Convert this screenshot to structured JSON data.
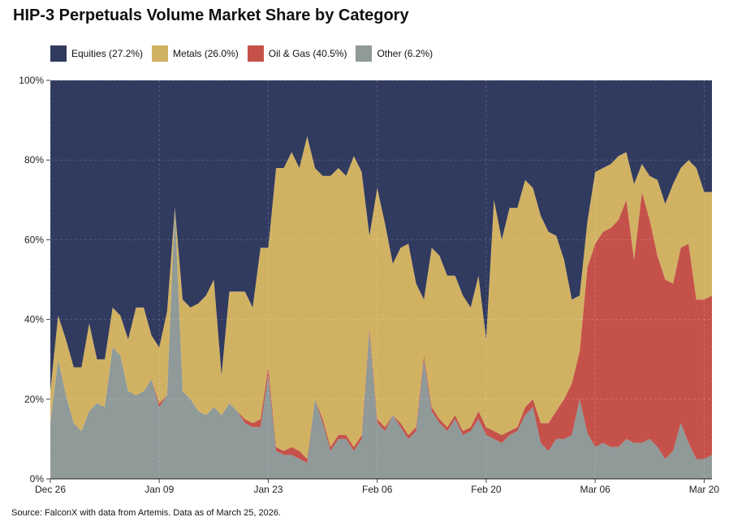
{
  "chart_data": {
    "type": "area",
    "stacked": true,
    "normalized": true,
    "title": "HIP-3 Perpetuals Volume Market Share by Category",
    "xlabel": "",
    "ylabel": "",
    "ylim": [
      0,
      100
    ],
    "y_ticks": [
      "0%",
      "20%",
      "40%",
      "60%",
      "80%",
      "100%"
    ],
    "x_ticks": [
      {
        "label": "Dec 26",
        "index": 0
      },
      {
        "label": "Jan 09",
        "index": 14
      },
      {
        "label": "Jan 23",
        "index": 28
      },
      {
        "label": "Feb 06",
        "index": 42
      },
      {
        "label": "Feb 20",
        "index": 56
      },
      {
        "label": "Mar 06",
        "index": 70
      },
      {
        "label": "Mar 20",
        "index": 84
      }
    ],
    "legend_position": "top-left",
    "grid": true,
    "x_days": 90,
    "series": [
      {
        "name": "Other",
        "legend": "Other (6.2%)",
        "color": "#8f9a99",
        "values": [
          14,
          30,
          21,
          14,
          12,
          17,
          19,
          18,
          33,
          31,
          22,
          21,
          22,
          25,
          18,
          21,
          68,
          22,
          20,
          17,
          16,
          18,
          16,
          19,
          17,
          14,
          13,
          13,
          26,
          7,
          6,
          6,
          5,
          4,
          20,
          14,
          7,
          10,
          10,
          7,
          10,
          37,
          14,
          12,
          16,
          13,
          10,
          12,
          30,
          17,
          14,
          12,
          15,
          11,
          12,
          15,
          11,
          10,
          9,
          11,
          12,
          16,
          18,
          9,
          7,
          10,
          10,
          11,
          20,
          13,
          8,
          9,
          8,
          8,
          10,
          9,
          9,
          10,
          8,
          5,
          7,
          14,
          9,
          5,
          5,
          6
        ]
      },
      {
        "name": "Oil & Gas",
        "legend": "Oil & Gas (40.5%)",
        "color": "#c5524a",
        "values": [
          0,
          0,
          0,
          0,
          0,
          0,
          0,
          0,
          0,
          0,
          0,
          0,
          0,
          0,
          1,
          0,
          0,
          0,
          0,
          0,
          0,
          0,
          0,
          0,
          0,
          1,
          1,
          2,
          2,
          1,
          1,
          2,
          2,
          1,
          0,
          1,
          1,
          1,
          1,
          1,
          1,
          1,
          1,
          1,
          0,
          1,
          1,
          1,
          1,
          1,
          1,
          1,
          1,
          1,
          1,
          2,
          2,
          2,
          2,
          1,
          1,
          2,
          2,
          5,
          7,
          7,
          10,
          13,
          12,
          47,
          51,
          53,
          55,
          57,
          60,
          46,
          63,
          55,
          48,
          45,
          42,
          44,
          50,
          40,
          40,
          40
        ]
      },
      {
        "name": "Metals",
        "legend": "Metals (26.0%)",
        "color": "#d1b263",
        "values": [
          8,
          11,
          14,
          14,
          16,
          22,
          11,
          12,
          10,
          10,
          13,
          22,
          21,
          11,
          14,
          21,
          0,
          23,
          23,
          27,
          30,
          32,
          10,
          28,
          30,
          32,
          29,
          43,
          30,
          70,
          71,
          74,
          71,
          81,
          58,
          61,
          68,
          67,
          65,
          73,
          66,
          23,
          58,
          51,
          38,
          44,
          48,
          36,
          14,
          40,
          41,
          38,
          35,
          34,
          30,
          34,
          22,
          58,
          49,
          56,
          55,
          57,
          53,
          52,
          48,
          44,
          35,
          21,
          14,
          13,
          18,
          16,
          16,
          16,
          12,
          19,
          7,
          11,
          19,
          19,
          25,
          20,
          21,
          33,
          27,
          26
        ]
      },
      {
        "name": "Equities",
        "legend": "Equities (27.2%)",
        "color": "#313a5f",
        "values": [
          78,
          59,
          65,
          72,
          72,
          61,
          70,
          70,
          57,
          59,
          65,
          57,
          57,
          64,
          67,
          58,
          32,
          55,
          57,
          56,
          54,
          50,
          74,
          53,
          53,
          53,
          57,
          42,
          42,
          22,
          22,
          18,
          22,
          14,
          22,
          24,
          24,
          22,
          24,
          19,
          23,
          39,
          27,
          36,
          46,
          42,
          41,
          51,
          55,
          42,
          44,
          49,
          49,
          54,
          57,
          49,
          65,
          30,
          40,
          32,
          32,
          25,
          27,
          34,
          38,
          39,
          45,
          55,
          54,
          40,
          23,
          22,
          21,
          19,
          18,
          26,
          21,
          24,
          25,
          31,
          26,
          22,
          20,
          22,
          28,
          28
        ]
      }
    ],
    "legend_order": [
      "Equities",
      "Metals",
      "Oil & Gas",
      "Other"
    ]
  },
  "source": "Source: FalconX with data from Artemis. Data as of March 25, 2026."
}
